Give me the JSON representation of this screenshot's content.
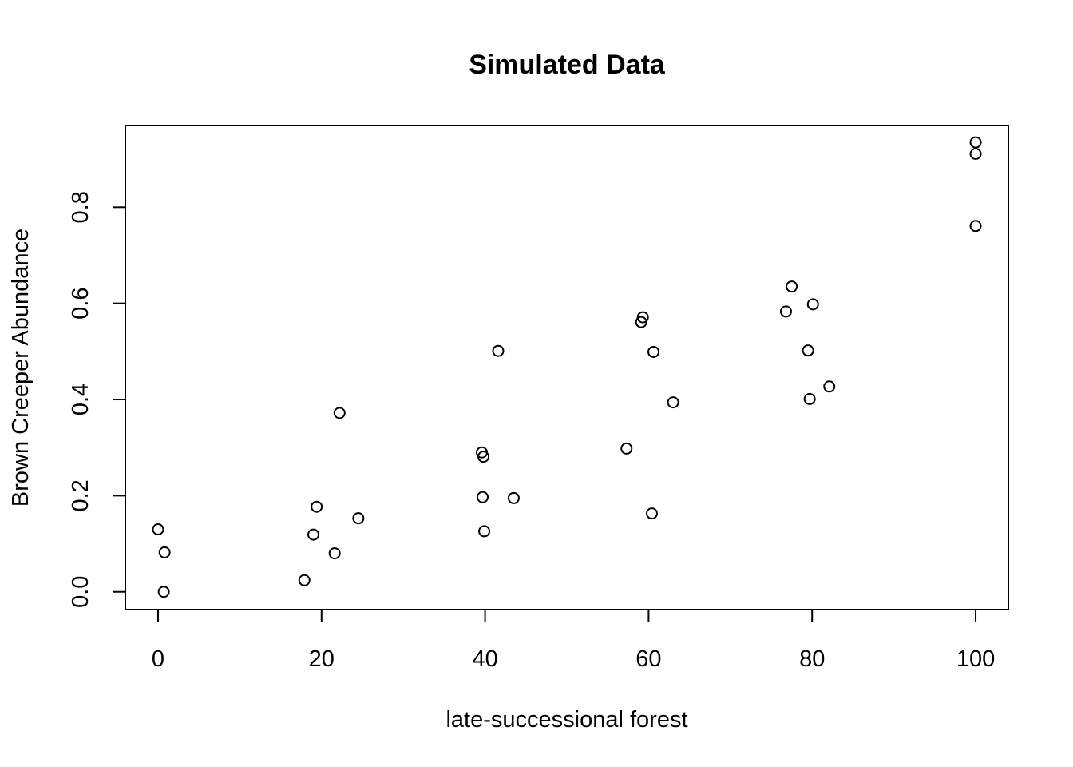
{
  "chart_data": {
    "type": "scatter",
    "title": "Simulated Data",
    "xlabel": "late-successional forest",
    "ylabel": "Brown Creeper Abundance",
    "xlim": [
      -4,
      104
    ],
    "ylim": [
      -0.037,
      0.97
    ],
    "x_ticks": [
      0,
      20,
      40,
      60,
      80,
      100
    ],
    "x_tick_labels": [
      "0",
      "20",
      "40",
      "60",
      "80",
      "100"
    ],
    "y_ticks": [
      0.0,
      0.2,
      0.4,
      0.6,
      0.8
    ],
    "y_tick_labels": [
      "0.0",
      "0.2",
      "0.4",
      "0.6",
      "0.8"
    ],
    "grid": false,
    "legend": "none",
    "series": [
      {
        "marker": "open-circle",
        "points": [
          {
            "x": 0.0,
            "y": 0.13
          },
          {
            "x": 0.8,
            "y": 0.082
          },
          {
            "x": 0.7,
            "y": 0.0
          },
          {
            "x": 17.9,
            "y": 0.024
          },
          {
            "x": 19.0,
            "y": 0.119
          },
          {
            "x": 19.4,
            "y": 0.177
          },
          {
            "x": 21.6,
            "y": 0.08
          },
          {
            "x": 22.2,
            "y": 0.372
          },
          {
            "x": 24.5,
            "y": 0.153
          },
          {
            "x": 39.6,
            "y": 0.29
          },
          {
            "x": 39.8,
            "y": 0.281
          },
          {
            "x": 39.7,
            "y": 0.197
          },
          {
            "x": 39.9,
            "y": 0.126
          },
          {
            "x": 41.6,
            "y": 0.501
          },
          {
            "x": 43.5,
            "y": 0.195
          },
          {
            "x": 57.3,
            "y": 0.298
          },
          {
            "x": 59.3,
            "y": 0.571
          },
          {
            "x": 59.1,
            "y": 0.561
          },
          {
            "x": 60.6,
            "y": 0.499
          },
          {
            "x": 60.4,
            "y": 0.163
          },
          {
            "x": 63.0,
            "y": 0.394
          },
          {
            "x": 76.8,
            "y": 0.583
          },
          {
            "x": 77.5,
            "y": 0.635
          },
          {
            "x": 80.1,
            "y": 0.598
          },
          {
            "x": 79.5,
            "y": 0.502
          },
          {
            "x": 79.7,
            "y": 0.401
          },
          {
            "x": 82.1,
            "y": 0.427
          },
          {
            "x": 100.0,
            "y": 0.935
          },
          {
            "x": 100.0,
            "y": 0.911
          },
          {
            "x": 100.0,
            "y": 0.761
          }
        ]
      }
    ]
  }
}
